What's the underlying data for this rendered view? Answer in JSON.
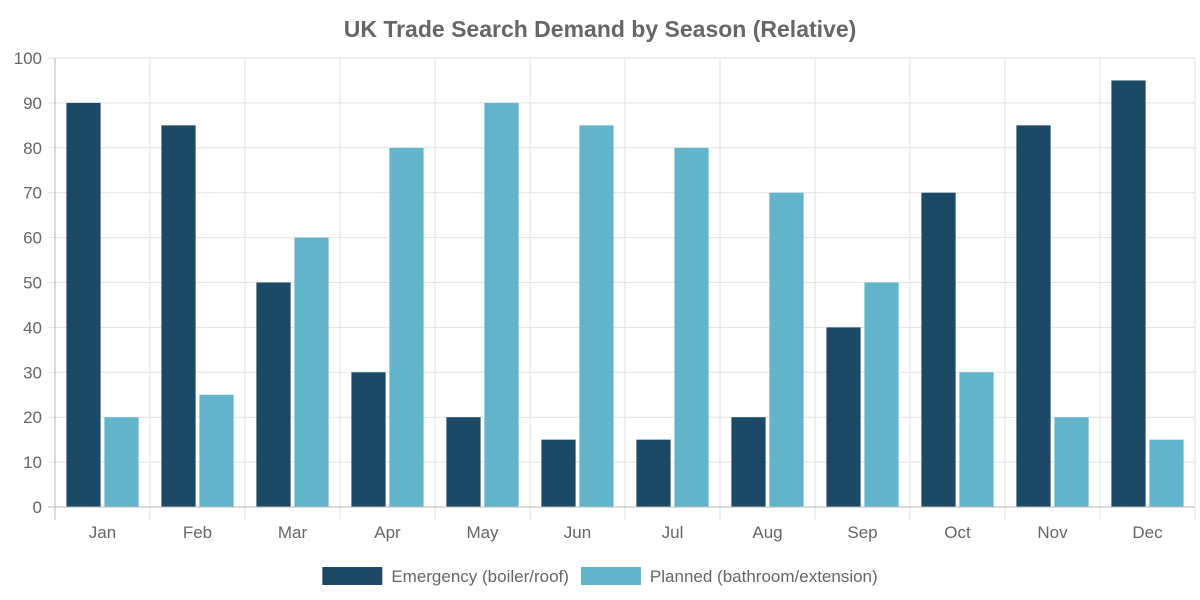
{
  "chart_data": {
    "type": "bar",
    "title": "UK Trade Search Demand by Season (Relative)",
    "xlabel": "",
    "ylabel": "",
    "categories": [
      "Jan",
      "Feb",
      "Mar",
      "Apr",
      "May",
      "Jun",
      "Jul",
      "Aug",
      "Sep",
      "Oct",
      "Nov",
      "Dec"
    ],
    "series": [
      {
        "name": "Emergency (boiler/roof)",
        "color": "#1c4966",
        "values": [
          90,
          85,
          50,
          30,
          20,
          15,
          15,
          20,
          40,
          70,
          85,
          95
        ]
      },
      {
        "name": "Planned (bathroom/extension)",
        "color": "#62b4cb",
        "values": [
          20,
          25,
          60,
          80,
          90,
          85,
          80,
          70,
          50,
          30,
          20,
          15
        ]
      }
    ],
    "ylim": [
      0,
      100
    ],
    "yticks": [
      0,
      10,
      20,
      30,
      40,
      50,
      60,
      70,
      80,
      90,
      100
    ],
    "grid": true,
    "legend_position": "bottom"
  }
}
